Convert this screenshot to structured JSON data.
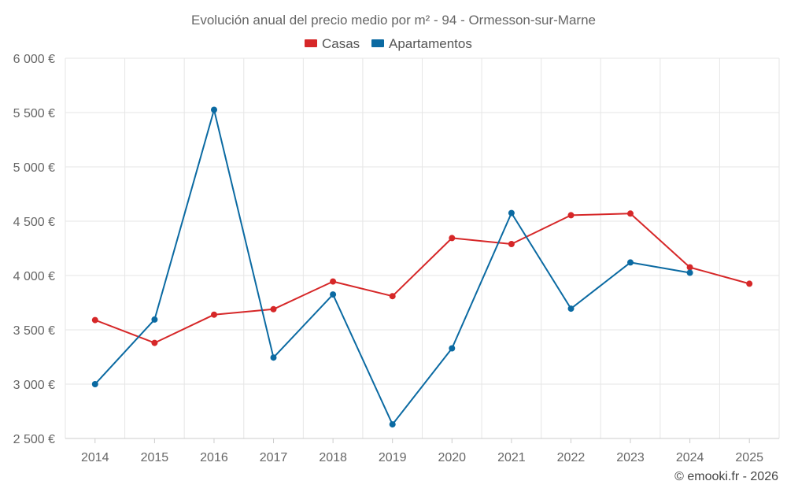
{
  "chart_data": {
    "type": "line",
    "title": "Evolución anual del precio medio por m² - 94 - Ormesson-sur-Marne",
    "xlabel": "",
    "ylabel": "",
    "categories": [
      "2014",
      "2015",
      "2016",
      "2017",
      "2018",
      "2019",
      "2020",
      "2021",
      "2022",
      "2023",
      "2024",
      "2025"
    ],
    "ylim": [
      2500,
      6000
    ],
    "yticks": [
      2500,
      3000,
      3500,
      4000,
      4500,
      5000,
      5500,
      6000
    ],
    "ytick_labels": [
      "2 500 €",
      "3 000 €",
      "3 500 €",
      "4 000 €",
      "4 500 €",
      "5 000 €",
      "5 500 €",
      "6 000 €"
    ],
    "grid": true,
    "legend_position": "top-center",
    "series": [
      {
        "name": "Casas",
        "color": "#d62728",
        "values": [
          3590,
          3380,
          3640,
          3690,
          3945,
          3810,
          4345,
          4290,
          4555,
          4570,
          4075,
          3925
        ]
      },
      {
        "name": "Apartamentos",
        "color": "#0b6aa2",
        "values": [
          3000,
          3595,
          5525,
          3245,
          3825,
          2630,
          3330,
          4575,
          3695,
          4120,
          4025,
          null
        ]
      }
    ]
  },
  "credit": "© emooki.fr - 2026"
}
